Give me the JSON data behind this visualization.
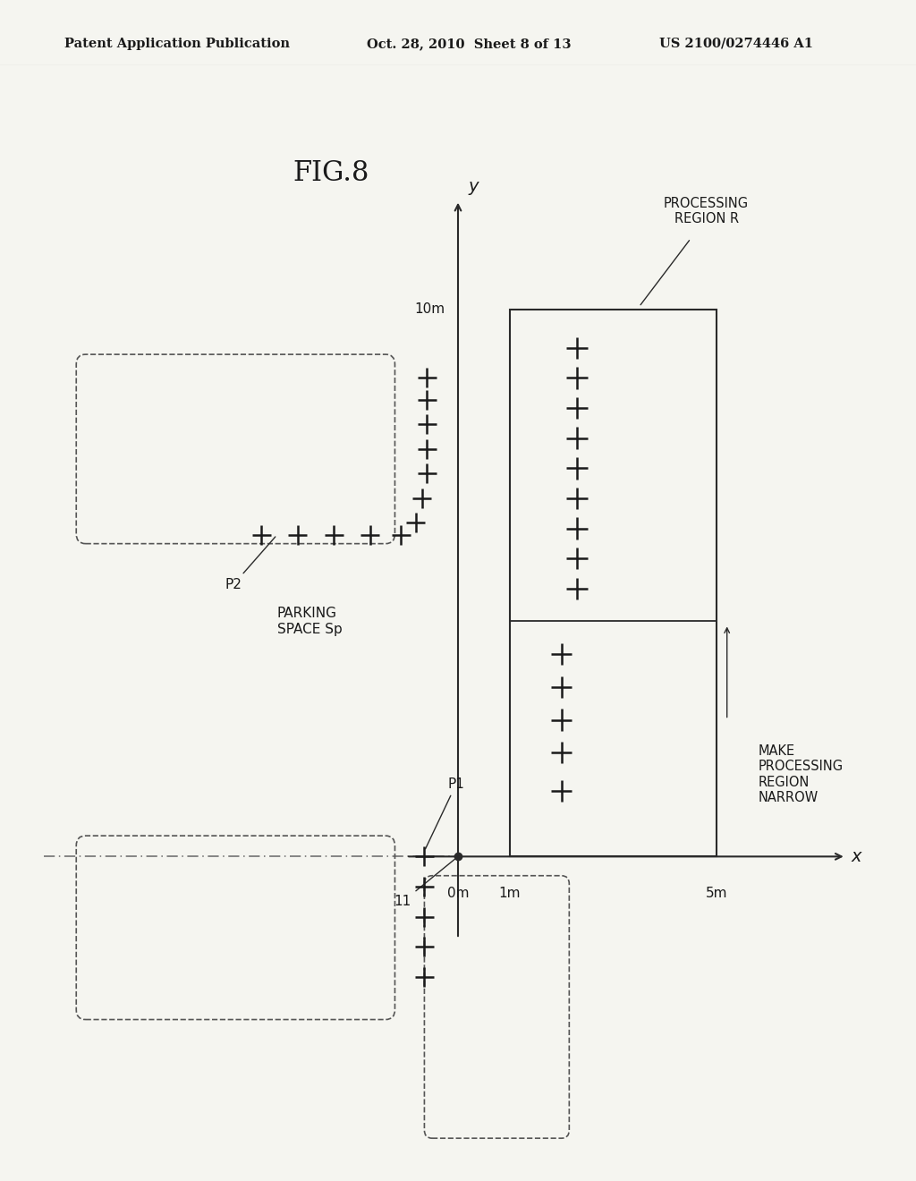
{
  "fig_title": "FIG.8",
  "header_left": "Patent Application Publication",
  "header_center": "Oct. 28, 2010  Sheet 8 of 13",
  "header_right": "US 2100/0274446 A1",
  "background_color": "#f5f5f0",
  "text_color": "#1a1a1a",
  "line_color": "#2a2a2a",
  "dash_color": "#444444",
  "origin_label": "11",
  "axis_x_label": "x",
  "axis_y_label": "y",
  "processing_region_label": "PROCESSING\nREGION R",
  "make_narrow_label": "MAKE\nPROCESSING\nREGION\nNARROW",
  "parking_space_label": "PARKING\nSPACE Sp",
  "p1_label": "P1",
  "p2_label": "P2",
  "xlim": [
    -8.5,
    8.5
  ],
  "ylim": [
    -5.5,
    13.5
  ],
  "figsize": [
    10.24,
    13.2
  ],
  "dpi": 100
}
